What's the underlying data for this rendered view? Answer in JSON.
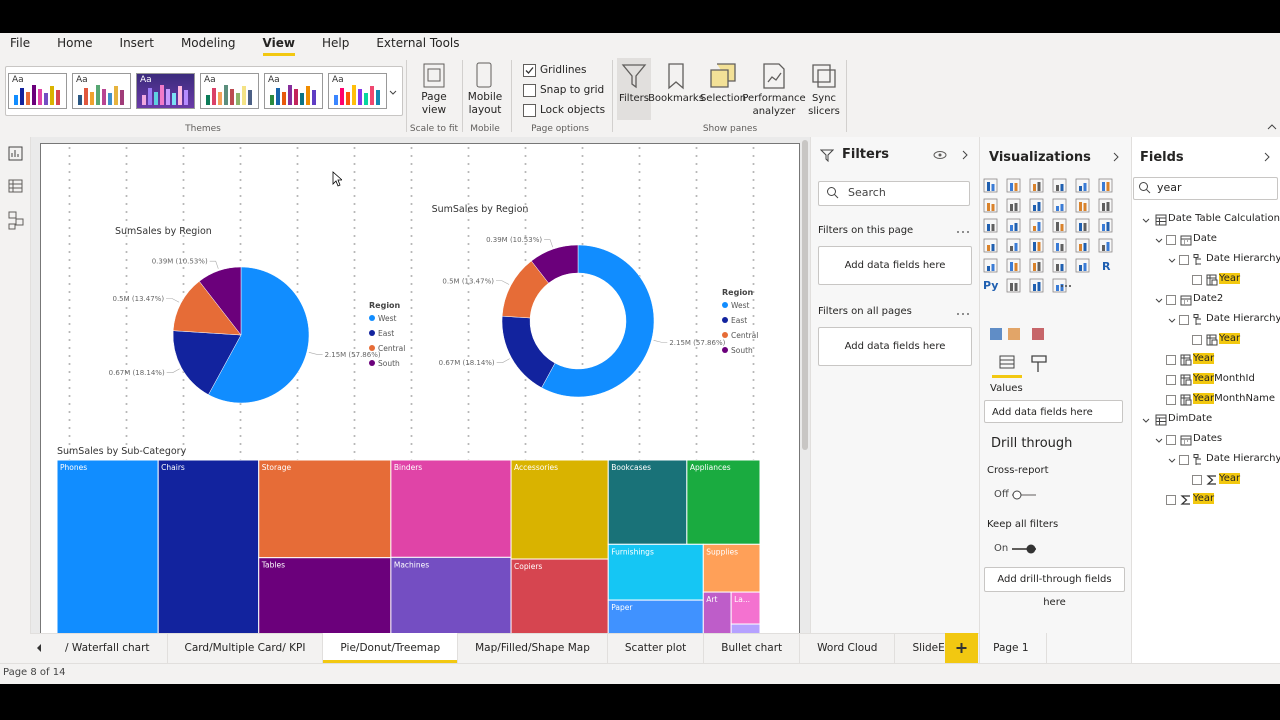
{
  "ribbon": {
    "tabs": [
      "File",
      "Home",
      "Insert",
      "Modeling",
      "View",
      "Help",
      "External Tools"
    ],
    "active_tab": 4,
    "theme_samples": [
      "Aa",
      "Aa",
      "Aa",
      "Aa",
      "Aa",
      "Aa"
    ],
    "themes_group": "Themes",
    "page_view": "Page view",
    "scale_group": "Scale to fit",
    "mobile_layout": "Mobile layout",
    "mobile_group": "Mobile",
    "page_options": [
      {
        "label": "Gridlines",
        "checked": true
      },
      {
        "label": "Snap to grid",
        "checked": false
      },
      {
        "label": "Lock objects",
        "checked": false
      }
    ],
    "page_options_group": "Page options",
    "show_panes": [
      "Filters",
      "Bookmarks",
      "Selection",
      "Performance analyzer",
      "Sync slicers"
    ],
    "show_panes_group": "Show panes"
  },
  "chart_data": [
    {
      "type": "pie",
      "title": "SumSales by Region",
      "legend_title": "Region",
      "categories": [
        "West",
        "East",
        "Central",
        "South"
      ],
      "values": [
        2.15,
        0.67,
        0.5,
        0.39
      ],
      "value_labels": [
        "2.15M (57.86%)",
        "0.67M (18.14%)",
        "0.5M (13.47%)",
        "0.39M (10.53%)"
      ],
      "colors": [
        "#118DFF",
        "#12239E",
        "#E66C37",
        "#6B007B"
      ]
    },
    {
      "type": "donut",
      "title": "SumSales by Region",
      "legend_title": "Region",
      "categories": [
        "West",
        "East",
        "Central",
        "South"
      ],
      "values": [
        2.15,
        0.67,
        0.5,
        0.39
      ],
      "value_labels": [
        "2.15M (57.86%)",
        "0.67M (18.14%)",
        "0.5M (13.47%)",
        "0.39M (10.53%)"
      ],
      "colors": [
        "#118DFF",
        "#12239E",
        "#E66C37",
        "#6B007B"
      ]
    },
    {
      "type": "treemap",
      "title": "SumSales by Sub-Category",
      "categories": [
        "Phones",
        "Chairs",
        "Storage",
        "Tables",
        "Binders",
        "Machines",
        "Accessories",
        "Copiers",
        "Bookcases",
        "Appliances",
        "Furnishings",
        "Paper",
        "Supplies",
        "Art",
        "La...",
        null
      ],
      "values": [
        330,
        328,
        224,
        207,
        203,
        189,
        167,
        150,
        115,
        107,
        92,
        79,
        47,
        27,
        16,
        12
      ],
      "colors": [
        "#118DFF",
        "#12239E",
        "#E66C37",
        "#6B007B",
        "#E044A7",
        "#744EC2",
        "#D9B300",
        "#D64550",
        "#197278",
        "#1AAB40",
        "#15C6F4",
        "#4092FF",
        "#FFA058",
        "#BE5DC9",
        "#F472D0",
        "#B5A1FF"
      ]
    }
  ],
  "filters": {
    "title": "Filters",
    "search": "Search",
    "this_page": "Filters on this page",
    "this_page_add": "Add data fields here",
    "all_pages": "Filters on all pages",
    "all_pages_add": "Add data fields here"
  },
  "visualizations": {
    "title": "Visualizations",
    "r_icon": "R",
    "python_icon": "Py",
    "values_label": "Values",
    "values_add": "Add data fields here",
    "drill_through": "Drill through",
    "cross_report": "Cross-report",
    "cross_report_state": "Off",
    "keep_all_filters": "Keep all filters",
    "keep_all_filters_state": "On",
    "drill_add": "Add drill-through fields here"
  },
  "fields": {
    "title": "Fields",
    "search": "year",
    "tree": [
      {
        "label": "Date Table Calculation",
        "icon": "table",
        "children": [
          {
            "label": "Date",
            "icon": "calendar",
            "children": [
              {
                "label": "Date Hierarchy",
                "icon": "hierarchy",
                "children": [
                  {
                    "label": "Year",
                    "icon": "date-field",
                    "highlight": true
                  }
                ]
              }
            ]
          },
          {
            "label": "Date2",
            "icon": "calendar",
            "children": [
              {
                "label": "Date Hierarchy",
                "icon": "hierarchy",
                "children": [
                  {
                    "label": "Year",
                    "icon": "date-field",
                    "highlight": true
                  }
                ]
              }
            ]
          },
          {
            "label": "Year",
            "icon": "date-field",
            "highlight": true
          },
          {
            "label": "Year",
            "rest": "MonthId",
            "icon": "date-field",
            "highlight": true
          },
          {
            "label": "Year",
            "rest": "MonthName",
            "icon": "date-field",
            "highlight": true
          }
        ]
      },
      {
        "label": "DimDate",
        "icon": "table",
        "children": [
          {
            "label": "Dates",
            "icon": "calendar",
            "children": [
              {
                "label": "Date Hierarchy",
                "icon": "hierarchy",
                "children": [
                  {
                    "label": "Year",
                    "icon": "sum",
                    "highlight": true
                  }
                ]
              }
            ]
          },
          {
            "label": "Year",
            "icon": "sum",
            "highlight": true
          }
        ]
      }
    ]
  },
  "page_tabs": {
    "tabs": [
      "/ Waterfall chart",
      "Card/Multiple Card/ KPI",
      "Pie/Donut/Treemap",
      "Map/Filled/Shape Map",
      "Scatter plot",
      "Bullet chart",
      "Word Cloud",
      "SlideEnd",
      "Page 1"
    ],
    "active": 2
  },
  "status": "Page 8 of 14"
}
